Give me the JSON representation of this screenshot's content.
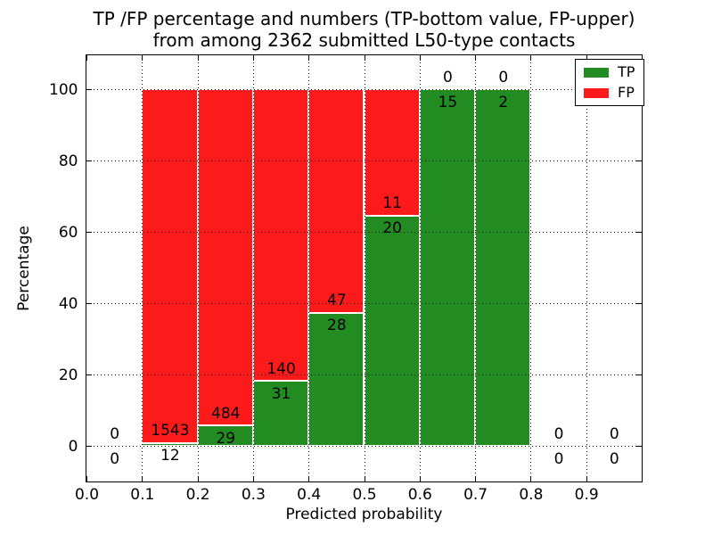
{
  "title": {
    "line1": "TP /FP percentage and numbers (TP-bottom value, FP-upper)",
    "line2": "from among 2362 submitted L50-type contacts"
  },
  "colors": {
    "tp_green": "#228b22",
    "fp_red": "#fd1a1a",
    "grid": "#000000",
    "background": "#ffffff",
    "bar_edge": "#ffffff"
  },
  "chart_data": {
    "type": "bar",
    "stacked": true,
    "orientation": "vertical",
    "title": "TP /FP percentage and numbers (TP-bottom value, FP-upper)\nfrom among 2362 submitted L50-type contacts",
    "xlabel": "Predicted probability",
    "ylabel": "Percentage",
    "xlim": [
      0.0,
      1.0
    ],
    "ylim": [
      -10,
      110
    ],
    "grid": true,
    "grid_style": "dotted, drawn above bars",
    "legend_position": "upper right",
    "legend": {
      "entries": [
        {
          "label": "TP",
          "color": "#228b22"
        },
        {
          "label": "FP",
          "color": "#fd1a1a"
        }
      ]
    },
    "x_ticks": [
      {
        "value": 0.0,
        "label": "0.0"
      },
      {
        "value": 0.1,
        "label": "0.1"
      },
      {
        "value": 0.2,
        "label": "0.2"
      },
      {
        "value": 0.3,
        "label": "0.3"
      },
      {
        "value": 0.4,
        "label": "0.4"
      },
      {
        "value": 0.5,
        "label": "0.5"
      },
      {
        "value": 0.6,
        "label": "0.6"
      },
      {
        "value": 0.7,
        "label": "0.7"
      },
      {
        "value": 0.8,
        "label": "0.8"
      },
      {
        "value": 0.9,
        "label": "0.9"
      }
    ],
    "y_ticks": [
      {
        "value": 0,
        "label": "0"
      },
      {
        "value": 20,
        "label": "20"
      },
      {
        "value": 40,
        "label": "40"
      },
      {
        "value": 60,
        "label": "60"
      },
      {
        "value": 80,
        "label": "80"
      },
      {
        "value": 100,
        "label": "100"
      }
    ],
    "bins": [
      {
        "range": [
          0.0,
          0.1
        ],
        "tp": 0,
        "fp": 0
      },
      {
        "range": [
          0.1,
          0.2
        ],
        "tp": 12,
        "fp": 1543
      },
      {
        "range": [
          0.2,
          0.3
        ],
        "tp": 29,
        "fp": 484
      },
      {
        "range": [
          0.3,
          0.4
        ],
        "tp": 31,
        "fp": 140
      },
      {
        "range": [
          0.4,
          0.5
        ],
        "tp": 28,
        "fp": 47
      },
      {
        "range": [
          0.5,
          0.6
        ],
        "tp": 20,
        "fp": 11
      },
      {
        "range": [
          0.6,
          0.7
        ],
        "tp": 15,
        "fp": 0
      },
      {
        "range": [
          0.7,
          0.8
        ],
        "tp": 2,
        "fp": 0
      },
      {
        "range": [
          0.8,
          0.9
        ],
        "tp": 0,
        "fp": 0
      },
      {
        "range": [
          0.9,
          1.0
        ],
        "tp": 0,
        "fp": 0
      }
    ],
    "bar_semantics": "each non-empty bin is stacked to 100%: TP share (green) on bottom, FP share (red) on top; printed numbers are raw counts"
  }
}
